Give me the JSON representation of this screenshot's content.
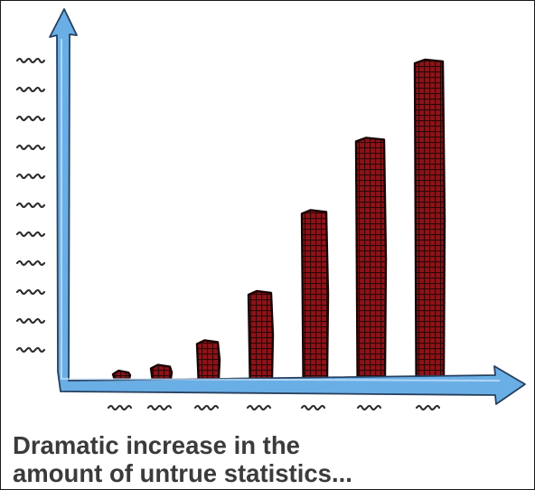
{
  "caption": {
    "line1": "Dramatic increase in the",
    "line2": "amount of untrue statistics..."
  },
  "colors": {
    "axis_fill": "#6aaee6",
    "axis_stroke": "#26405e",
    "bar_fill": "#8e1318",
    "bar_grid": "#2c0707",
    "ink": "#2b2b2b"
  },
  "chart_data": {
    "type": "bar",
    "title": "",
    "xlabel": "",
    "ylabel": "",
    "grid": false,
    "tick_labels_legible": false,
    "y_tick_count": 11,
    "ylim": [
      0,
      11.5
    ],
    "values": [
      0.25,
      0.45,
      1.3,
      3.0,
      5.8,
      8.3,
      11.0
    ]
  }
}
